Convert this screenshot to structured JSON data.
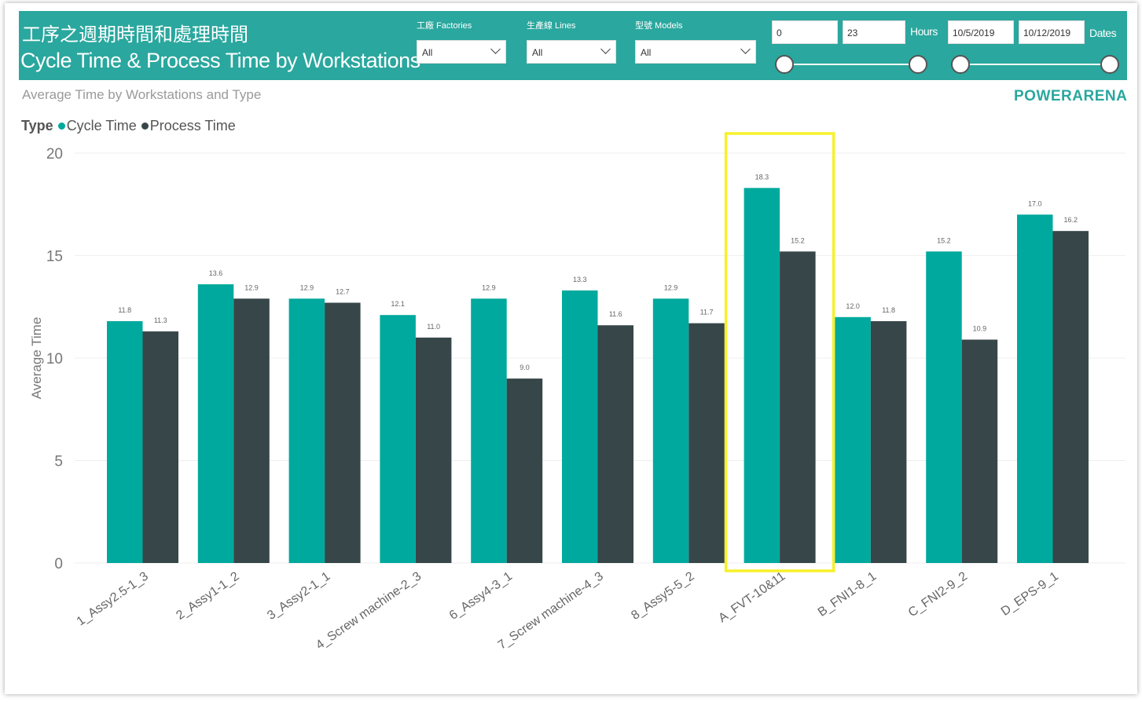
{
  "header": {
    "title_zh": "工序之週期時間和處理時間",
    "title_en": "Cycle Time & Process Time by Workstations",
    "slicers": [
      {
        "label": "工廠 Factories",
        "value": "All"
      },
      {
        "label": "生產線 Lines",
        "value": "All"
      },
      {
        "label": "型號 Models",
        "value": "All"
      }
    ],
    "hours": {
      "min": "0",
      "max": "23",
      "label": "Hours"
    },
    "dates": {
      "start": "10/5/2019",
      "end": "10/12/2019",
      "label": "Dates"
    }
  },
  "subtitle": "Average Time by Workstations and Type",
  "brand": "POWERARENA",
  "legend": {
    "title": "Type"
  },
  "colors": {
    "cycle": "#00a99d",
    "process": "#374649",
    "highlight": "#f6f12a",
    "header": "#2aa79e"
  },
  "chart_data": {
    "type": "bar",
    "ylabel": "Average Time",
    "xlabel": "",
    "ylim": [
      0,
      20
    ],
    "yticks": [
      0,
      5,
      10,
      15,
      20
    ],
    "grid": true,
    "legend_position": "top-left",
    "categories": [
      "1_Assy2.5-1_3",
      "2_Assy1-1_2",
      "3_Assy2-1_1",
      "4_Screw machine-2_3",
      "6_Assy4-3_1",
      "7_Screw machine-4_3",
      "8_Assy5-5_2",
      "A_FVT-10&11",
      "B_FNI1-8_1",
      "C_FNI2-9_2",
      "D_EPS-9_1"
    ],
    "series": [
      {
        "name": "Cycle Time",
        "values": [
          11.8,
          13.6,
          12.9,
          12.1,
          12.9,
          13.3,
          12.9,
          18.3,
          12.0,
          15.2,
          17.0
        ]
      },
      {
        "name": "Process Time",
        "values": [
          11.3,
          12.9,
          12.7,
          11.0,
          9.0,
          11.6,
          11.7,
          15.2,
          11.8,
          10.9,
          16.2
        ]
      }
    ],
    "highlighted_category": "A_FVT-10&11"
  }
}
